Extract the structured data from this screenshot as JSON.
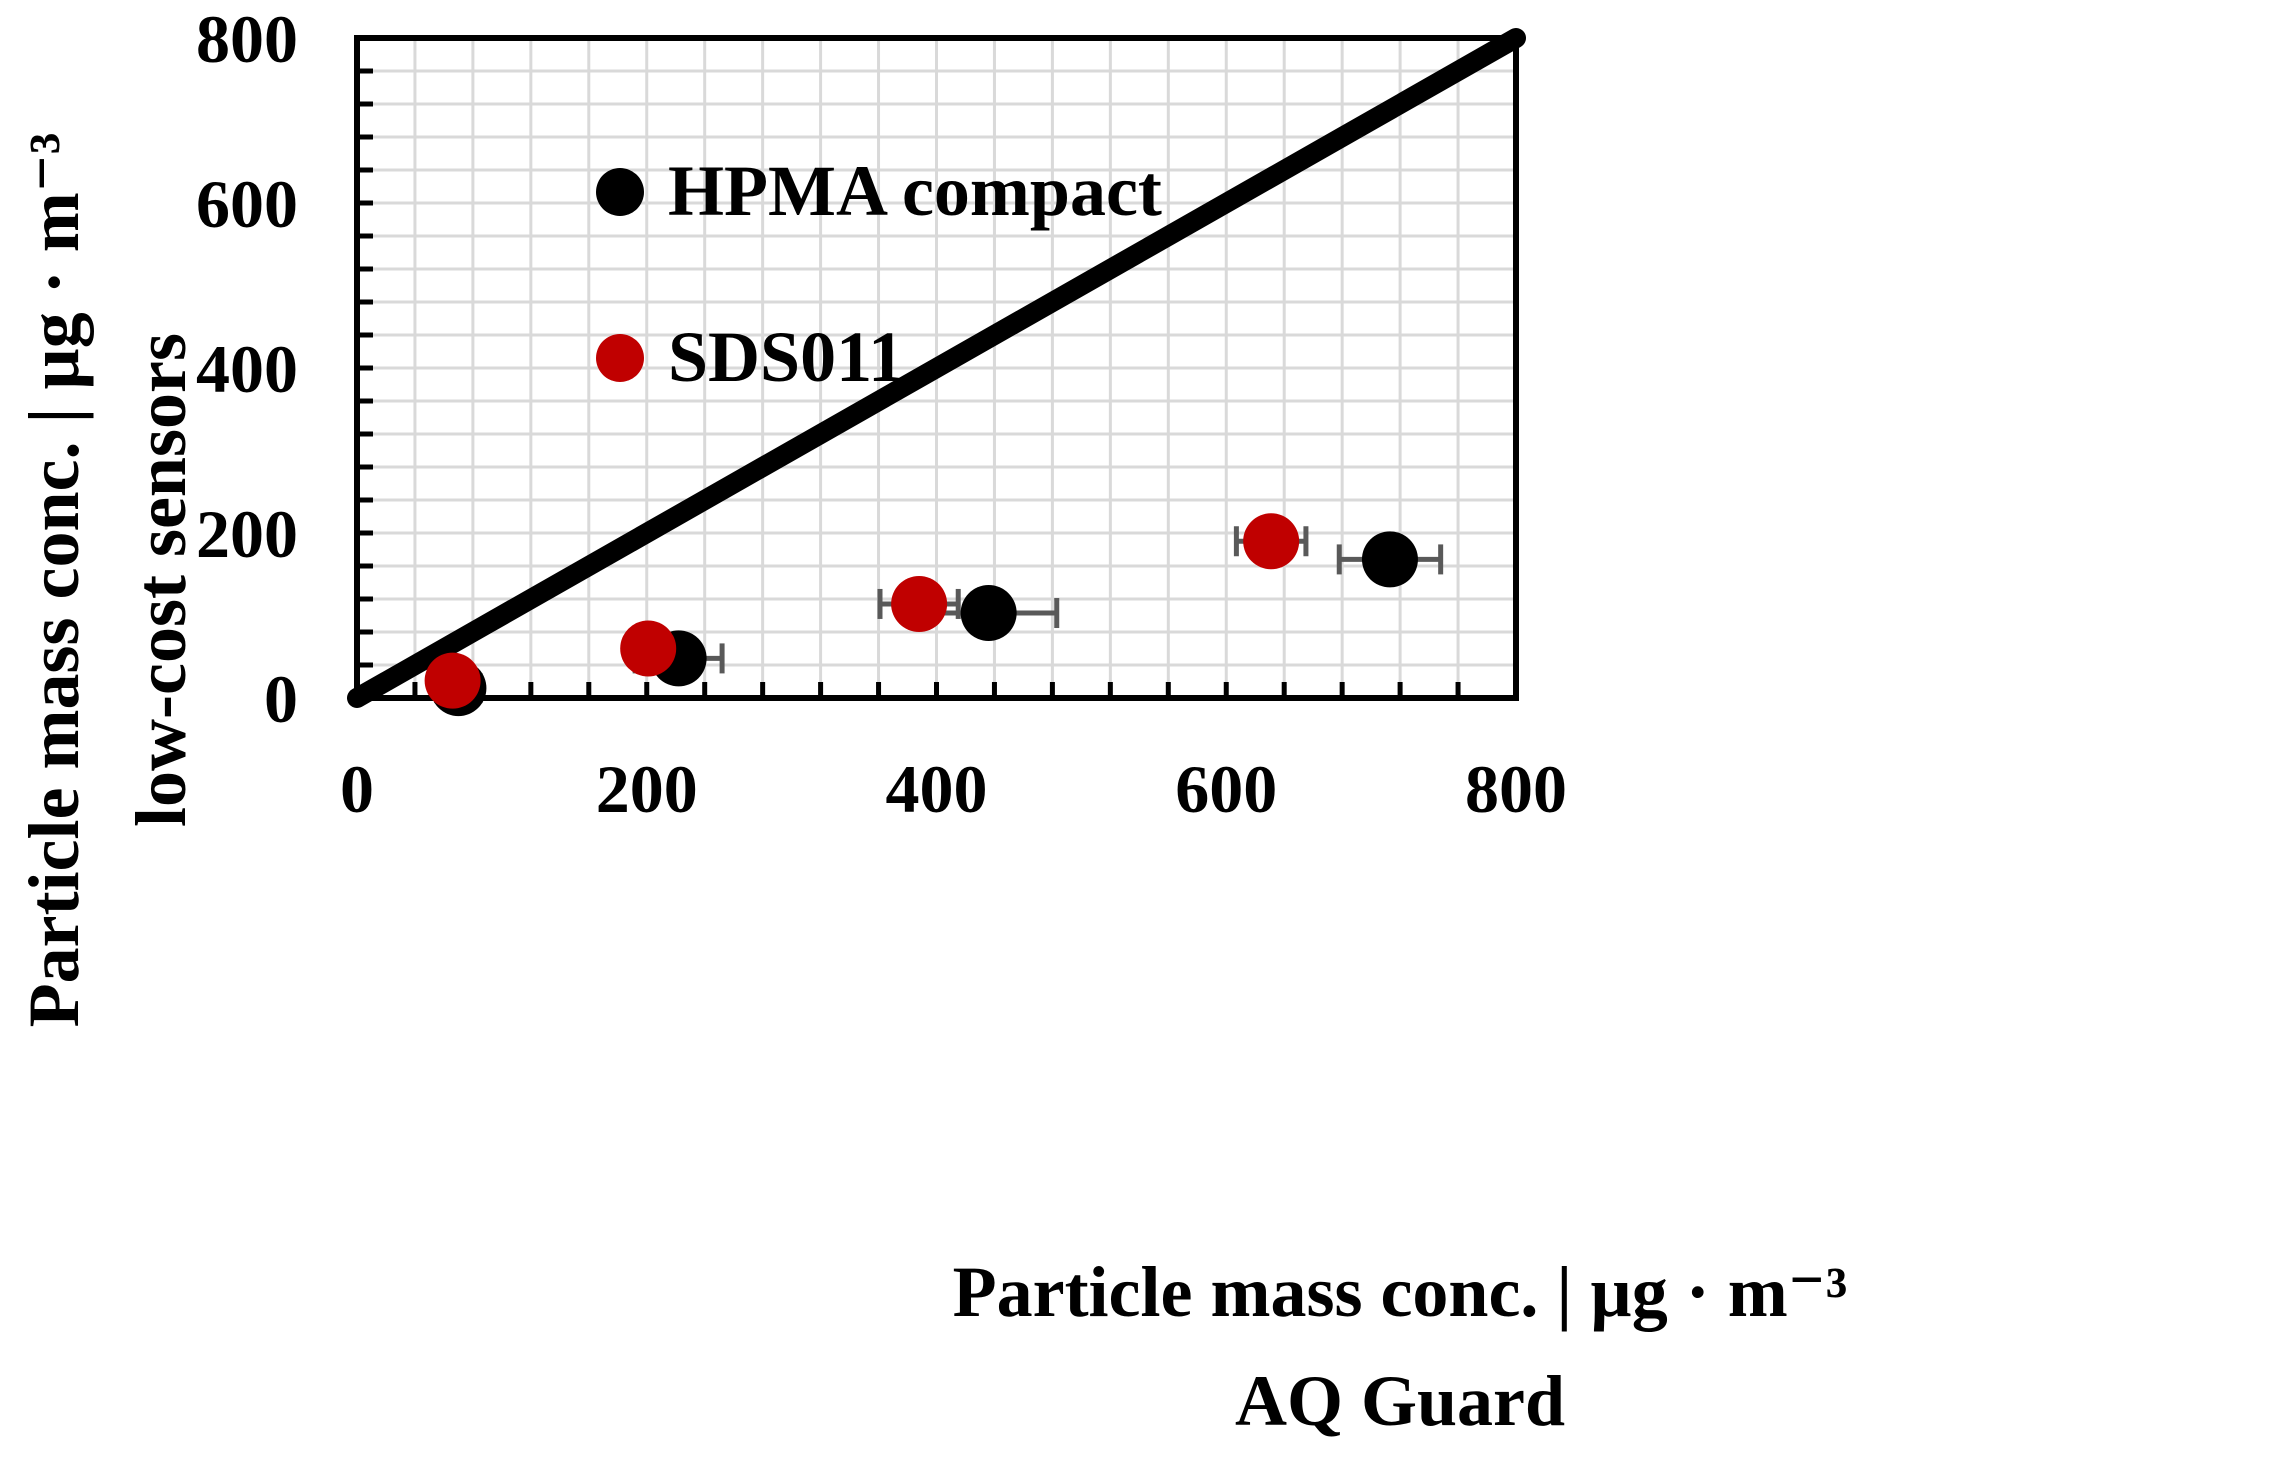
{
  "chart_data": {
    "type": "scatter",
    "title": "",
    "xlabel": [
      "Particle mass conc. | µg · m⁻³",
      "AQ Guard"
    ],
    "ylabel": [
      "Particle mass conc. | µg · m⁻³",
      "low-cost sensors"
    ],
    "xlim": [
      0,
      800
    ],
    "ylim": [
      0,
      800
    ],
    "xticks": [
      "0",
      "200",
      "400",
      "600",
      "800"
    ],
    "yticks": [
      "0",
      "200",
      "400",
      "600",
      "800"
    ],
    "grid": true,
    "legend_position": "top-left",
    "reference_line": {
      "name": "1:1 line",
      "from": [
        0,
        0
      ],
      "to": [
        800,
        800
      ],
      "color": "#000000"
    },
    "series": [
      {
        "name": "HPMA compact",
        "color": "#000000",
        "points": [
          {
            "x": 70,
            "y": 12,
            "xerr": 15
          },
          {
            "x": 222,
            "y": 48,
            "xerr": 30
          },
          {
            "x": 436,
            "y": 103,
            "xerr": 47
          },
          {
            "x": 713,
            "y": 168,
            "xerr": 35
          }
        ]
      },
      {
        "name": "SDS011",
        "color": "#c00000",
        "points": [
          {
            "x": 66,
            "y": 21,
            "xerr": 5
          },
          {
            "x": 201,
            "y": 60,
            "xerr": 11
          },
          {
            "x": 388,
            "y": 114,
            "xerr": 27
          },
          {
            "x": 631,
            "y": 190,
            "xerr": 24
          }
        ]
      }
    ]
  }
}
